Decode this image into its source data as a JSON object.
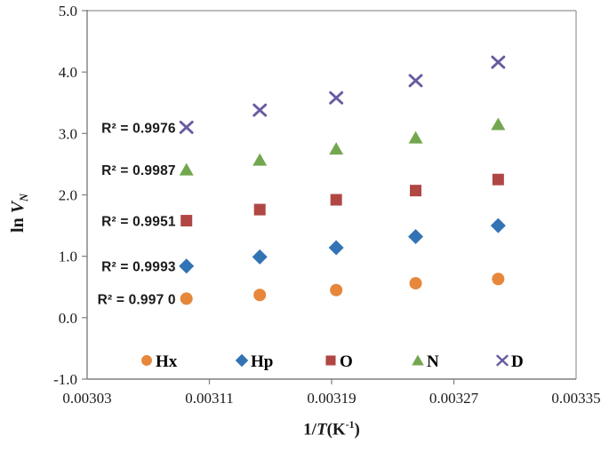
{
  "chart_data": {
    "type": "scatter",
    "title": "",
    "xlabel": "1/T(K-1)",
    "ylabel": "ln VN",
    "xlabel_parts": {
      "prefix": "1/",
      "t": "T",
      "mid": "(K",
      "sup": "-1",
      "suffix": ")"
    },
    "ylabel_parts": {
      "ln": "ln ",
      "v": "V",
      "sub": "N"
    },
    "xlim": [
      0.00303,
      0.00335
    ],
    "ylim": [
      -1.0,
      5.0
    ],
    "grid": false,
    "legend_position": "bottom-inside",
    "x_ticks": {
      "values": [
        0.00303,
        0.00311,
        0.00319,
        0.00327,
        0.00335
      ],
      "labels": [
        "0.00303",
        "0.00311",
        "0.00319",
        "0.00327",
        "0.00335"
      ],
      "inner_tick_values": [
        0.00311,
        0.00319,
        0.00327
      ]
    },
    "y_ticks": {
      "values": [
        5.0,
        4.0,
        3.0,
        2.0,
        1.0,
        0.0,
        -1.0
      ],
      "labels": [
        "5.0",
        "4.0",
        "3.0",
        "2.0",
        "1.0",
        "0.0",
        "-1.0"
      ]
    },
    "x": [
      0.003095,
      0.003143,
      0.003193,
      0.003245,
      0.003299
    ],
    "series": [
      {
        "name": "Hx",
        "marker": "circle",
        "color": "#E6873B",
        "r_squared": 0.997,
        "r2_label": "R² = 0.997 0",
        "values": [
          0.31,
          0.37,
          0.45,
          0.56,
          0.63
        ]
      },
      {
        "name": "Hp",
        "marker": "diamond",
        "color": "#3273B4",
        "r_squared": 0.9993,
        "r2_label": "R² = 0.9993",
        "values": [
          0.84,
          0.99,
          1.14,
          1.32,
          1.5
        ]
      },
      {
        "name": "O",
        "marker": "square",
        "color": "#B04744",
        "r_squared": 0.9951,
        "r2_label": "R² = 0.9951",
        "values": [
          1.58,
          1.76,
          1.92,
          2.07,
          2.25
        ]
      },
      {
        "name": "N",
        "marker": "triangle",
        "color": "#73A74F",
        "r_squared": 0.9987,
        "r2_label": "R² = 0.9987",
        "values": [
          2.41,
          2.57,
          2.75,
          2.93,
          3.15
        ]
      },
      {
        "name": "D",
        "marker": "x",
        "color": "#6A5BA2",
        "r_squared": 0.9976,
        "r2_label": "R² = 0.9976",
        "values": [
          3.1,
          3.38,
          3.58,
          3.86,
          4.16
        ]
      }
    ],
    "axis_colors": {
      "spine": "#7F7F7F",
      "border": "#A6A6A6",
      "text": "#1A1A1A"
    }
  }
}
